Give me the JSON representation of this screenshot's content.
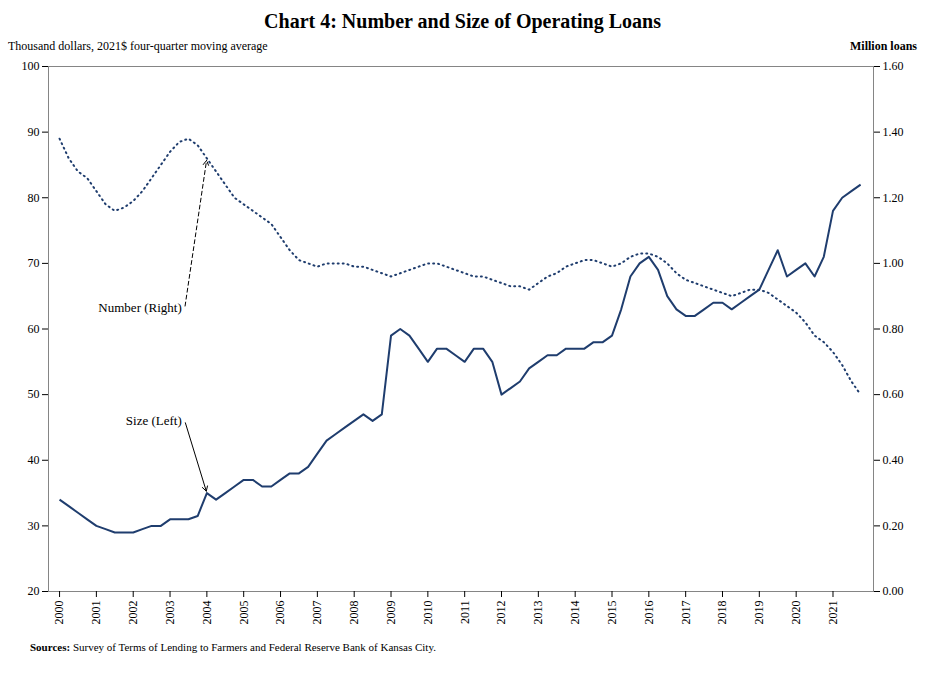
{
  "chart_data": {
    "type": "line",
    "title": "Chart 4: Number and Size of Operating Loans",
    "y_label": "Thousand dollars, 2021$ four-quarter moving average",
    "y2_label": "Million loans",
    "source_bold": "Sources:",
    "source_rest": " Survey of Terms of Lending to Farmers and Federal Reserve Bank of Kansas City.",
    "grid": false,
    "xlim": [
      1999.7,
      2022.1
    ],
    "xticks": [
      2000,
      2001,
      2002,
      2003,
      2004,
      2005,
      2006,
      2007,
      2008,
      2009,
      2010,
      2011,
      2012,
      2013,
      2014,
      2015,
      2016,
      2017,
      2018,
      2019,
      2020,
      2021
    ],
    "ylim": [
      20,
      100
    ],
    "yticks": [
      20,
      30,
      40,
      50,
      60,
      70,
      80,
      90,
      100
    ],
    "y2lim": [
      0.0,
      1.6
    ],
    "y2ticks": [
      {
        "value": 0.0,
        "label": "0.00"
      },
      {
        "value": 0.2,
        "label": "0.20"
      },
      {
        "value": 0.4,
        "label": "0.40"
      },
      {
        "value": 0.6,
        "label": "0.60"
      },
      {
        "value": 0.8,
        "label": "0.80"
      },
      {
        "value": 1.0,
        "label": "1.00"
      },
      {
        "value": 1.2,
        "label": "1.20"
      },
      {
        "value": 1.4,
        "label": "1.40"
      },
      {
        "value": 1.6,
        "label": "1.60"
      }
    ],
    "x": [
      2000.0,
      2000.25,
      2000.5,
      2000.75,
      2001.0,
      2001.25,
      2001.5,
      2001.75,
      2002.0,
      2002.25,
      2002.5,
      2002.75,
      2003.0,
      2003.25,
      2003.5,
      2003.75,
      2004.0,
      2004.25,
      2004.5,
      2004.75,
      2005.0,
      2005.25,
      2005.5,
      2005.75,
      2006.0,
      2006.25,
      2006.5,
      2006.75,
      2007.0,
      2007.25,
      2007.5,
      2007.75,
      2008.0,
      2008.25,
      2008.5,
      2008.75,
      2009.0,
      2009.25,
      2009.5,
      2009.75,
      2010.0,
      2010.25,
      2010.5,
      2010.75,
      2011.0,
      2011.25,
      2011.5,
      2011.75,
      2012.0,
      2012.25,
      2012.5,
      2012.75,
      2013.0,
      2013.25,
      2013.5,
      2013.75,
      2014.0,
      2014.25,
      2014.5,
      2014.75,
      2015.0,
      2015.25,
      2015.5,
      2015.75,
      2016.0,
      2016.25,
      2016.5,
      2016.75,
      2017.0,
      2017.25,
      2017.5,
      2017.75,
      2018.0,
      2018.25,
      2018.5,
      2018.75,
      2019.0,
      2019.25,
      2019.5,
      2019.75,
      2020.0,
      2020.25,
      2020.5,
      2020.75,
      2021.0,
      2021.25,
      2021.5,
      2021.75
    ],
    "series": [
      {
        "name": "Size (Left)",
        "color": "#1f3d6e",
        "line_style": "solid",
        "values": [
          34,
          33,
          32,
          31,
          30,
          29.5,
          29,
          29,
          29,
          29.5,
          30,
          30,
          31,
          31,
          31,
          31.5,
          35,
          34,
          35,
          36,
          37,
          37,
          36,
          36,
          37,
          38,
          38,
          39,
          41,
          43,
          44,
          45,
          46,
          47,
          46,
          47,
          59,
          60,
          59,
          57,
          55,
          57,
          57,
          56,
          55,
          57,
          57,
          55,
          50,
          51,
          52,
          54,
          55,
          56,
          56,
          57,
          57,
          57,
          58,
          58,
          59,
          63,
          68,
          70,
          71,
          69,
          65,
          63,
          62,
          62,
          63,
          64,
          64,
          63,
          64,
          65,
          66,
          69,
          72,
          68,
          69,
          70,
          68,
          71,
          78,
          80,
          81,
          82
        ]
      },
      {
        "name": "Number (Right)",
        "color": "#1f3d6e",
        "line_style": "dotted",
        "axis": "y2",
        "values": [
          1.38,
          1.32,
          1.28,
          1.26,
          1.22,
          1.18,
          1.16,
          1.17,
          1.19,
          1.22,
          1.26,
          1.3,
          1.34,
          1.37,
          1.38,
          1.36,
          1.32,
          1.28,
          1.24,
          1.2,
          1.18,
          1.16,
          1.14,
          1.12,
          1.08,
          1.04,
          1.01,
          1.0,
          0.99,
          1.0,
          1.0,
          1.0,
          0.99,
          0.99,
          0.98,
          0.97,
          0.96,
          0.97,
          0.98,
          0.99,
          1.0,
          1.0,
          0.99,
          0.98,
          0.97,
          0.96,
          0.96,
          0.95,
          0.94,
          0.93,
          0.93,
          0.92,
          0.94,
          0.96,
          0.97,
          0.99,
          1.0,
          1.01,
          1.01,
          1.0,
          0.99,
          1.0,
          1.02,
          1.03,
          1.03,
          1.02,
          1.0,
          0.97,
          0.95,
          0.94,
          0.93,
          0.92,
          0.91,
          0.9,
          0.91,
          0.92,
          0.92,
          0.91,
          0.89,
          0.87,
          0.85,
          0.82,
          0.78,
          0.76,
          0.73,
          0.69,
          0.64,
          0.6
        ]
      }
    ]
  }
}
